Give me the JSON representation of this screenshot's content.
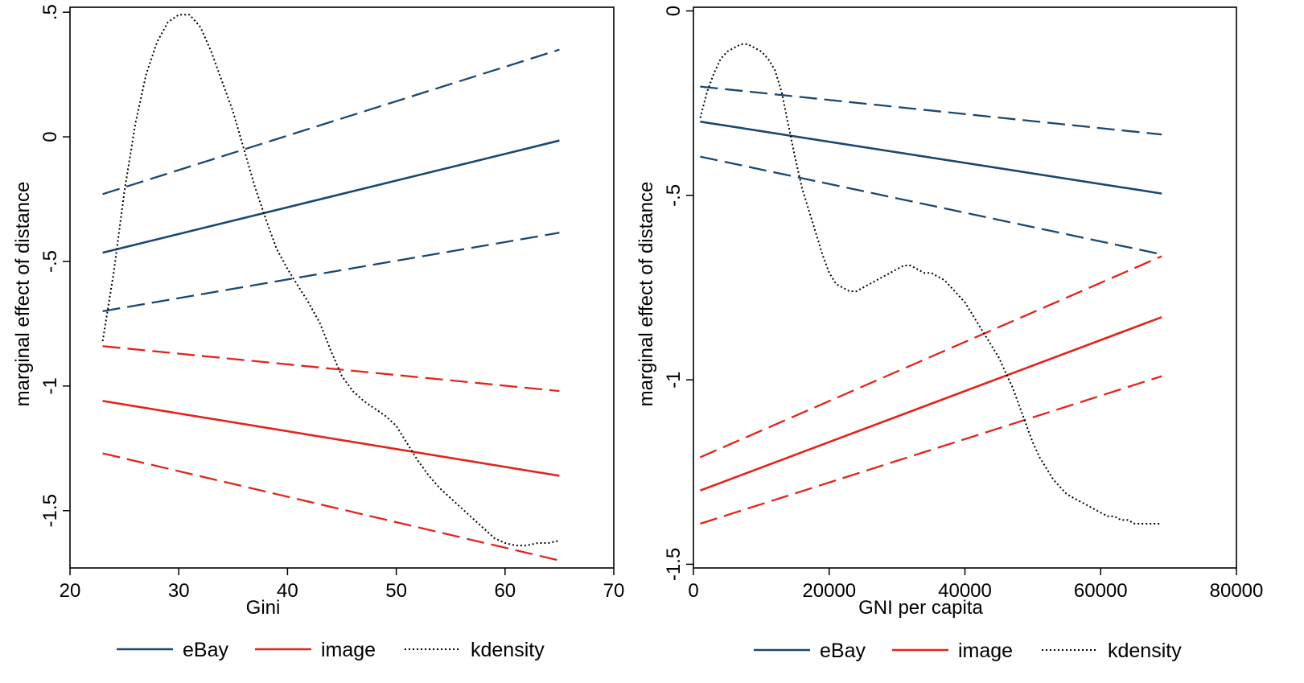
{
  "colors": {
    "ebay": "#1a476f",
    "image": "#e2231a",
    "kdensity": "#000000",
    "frame": "#000000"
  },
  "chart_data": [
    {
      "type": "line",
      "xlabel": "Gini",
      "ylabel": "marginal effect of distance",
      "xlim": [
        20,
        70
      ],
      "ylim": [
        -1.73,
        0.52
      ],
      "xticks": [
        {
          "value": 20,
          "label": "20"
        },
        {
          "value": 30,
          "label": "30"
        },
        {
          "value": 40,
          "label": "40"
        },
        {
          "value": 50,
          "label": "50"
        },
        {
          "value": 60,
          "label": "60"
        },
        {
          "value": 70,
          "label": "70"
        }
      ],
      "yticks": [
        {
          "value": 0.5,
          "label": ".5"
        },
        {
          "value": 0,
          "label": "0"
        },
        {
          "value": -0.5,
          "label": "-.5"
        },
        {
          "value": -1,
          "label": "-1"
        },
        {
          "value": -1.5,
          "label": "-1.5"
        }
      ],
      "legend_position": "bottom",
      "legend": [
        {
          "key": "ebay",
          "label": "eBay",
          "style": "solid"
        },
        {
          "key": "image",
          "label": "image",
          "style": "solid"
        },
        {
          "key": "kdensity",
          "label": "kdensity",
          "style": "dotted"
        }
      ],
      "series": [
        {
          "key": "ebay",
          "style": "solid",
          "x": [
            23,
            65
          ],
          "y": [
            -0.465,
            -0.015
          ]
        },
        {
          "key": "ebay",
          "style": "dashed",
          "x": [
            23,
            65
          ],
          "y": [
            -0.23,
            0.35
          ]
        },
        {
          "key": "ebay",
          "style": "dashed",
          "x": [
            23,
            65
          ],
          "y": [
            -0.7,
            -0.385
          ]
        },
        {
          "key": "image",
          "style": "solid",
          "x": [
            23,
            65
          ],
          "y": [
            -1.06,
            -1.36
          ]
        },
        {
          "key": "image",
          "style": "dashed",
          "x": [
            23,
            65
          ],
          "y": [
            -0.84,
            -1.02
          ]
        },
        {
          "key": "image",
          "style": "dashed",
          "x": [
            23,
            65
          ],
          "y": [
            -1.27,
            -1.7
          ]
        },
        {
          "key": "kdensity",
          "style": "dotted",
          "x": [
            23,
            24,
            25,
            26,
            27,
            28,
            29,
            30,
            31,
            32,
            33,
            34,
            35,
            36,
            37,
            38,
            39,
            40,
            41,
            42,
            43,
            44,
            45,
            46,
            47,
            48,
            49,
            50,
            51,
            52,
            53,
            54,
            55,
            56,
            57,
            58,
            59,
            60,
            61,
            62,
            63,
            64,
            65
          ],
          "y": [
            -0.82,
            -0.55,
            -0.22,
            0.05,
            0.25,
            0.38,
            0.46,
            0.49,
            0.49,
            0.44,
            0.34,
            0.22,
            0.1,
            -0.05,
            -0.2,
            -0.33,
            -0.45,
            -0.53,
            -0.6,
            -0.67,
            -0.75,
            -0.86,
            -0.96,
            -1.02,
            -1.06,
            -1.09,
            -1.12,
            -1.16,
            -1.23,
            -1.3,
            -1.36,
            -1.41,
            -1.45,
            -1.49,
            -1.53,
            -1.57,
            -1.61,
            -1.63,
            -1.64,
            -1.64,
            -1.63,
            -1.63,
            -1.62
          ]
        }
      ]
    },
    {
      "type": "line",
      "xlabel": "GNI per capita",
      "ylabel": "marginal effect of distance",
      "xlim": [
        0,
        80000
      ],
      "ylim": [
        -1.51,
        0.01
      ],
      "xticks": [
        {
          "value": 0,
          "label": "0"
        },
        {
          "value": 20000,
          "label": "20000"
        },
        {
          "value": 40000,
          "label": "40000"
        },
        {
          "value": 60000,
          "label": "60000"
        },
        {
          "value": 80000,
          "label": "80000"
        }
      ],
      "yticks": [
        {
          "value": 0,
          "label": "0"
        },
        {
          "value": -0.5,
          "label": "-.5"
        },
        {
          "value": -1,
          "label": "-1"
        },
        {
          "value": -1.5,
          "label": "-1.5"
        }
      ],
      "legend_position": "bottom",
      "legend": [
        {
          "key": "ebay",
          "label": "eBay",
          "style": "solid"
        },
        {
          "key": "image",
          "label": "image",
          "style": "solid"
        },
        {
          "key": "kdensity",
          "label": "kdensity",
          "style": "dotted"
        }
      ],
      "series": [
        {
          "key": "ebay",
          "style": "solid",
          "x": [
            1000,
            69000
          ],
          "y": [
            -0.3,
            -0.495
          ]
        },
        {
          "key": "ebay",
          "style": "dashed",
          "x": [
            1000,
            69000
          ],
          "y": [
            -0.205,
            -0.335
          ]
        },
        {
          "key": "ebay",
          "style": "dashed",
          "x": [
            1000,
            69000
          ],
          "y": [
            -0.395,
            -0.66
          ]
        },
        {
          "key": "image",
          "style": "solid",
          "x": [
            1000,
            69000
          ],
          "y": [
            -1.3,
            -0.83
          ]
        },
        {
          "key": "image",
          "style": "dashed",
          "x": [
            1000,
            69000
          ],
          "y": [
            -1.21,
            -0.665
          ]
        },
        {
          "key": "image",
          "style": "dashed",
          "x": [
            1000,
            69000
          ],
          "y": [
            -1.39,
            -0.99
          ]
        },
        {
          "key": "kdensity",
          "style": "dotted",
          "x": [
            1000,
            2000,
            3000,
            4000,
            5000,
            6000,
            7000,
            8000,
            9000,
            10000,
            11000,
            12000,
            13000,
            14000,
            15000,
            16000,
            17000,
            18000,
            19000,
            20000,
            21000,
            22000,
            23000,
            24000,
            25000,
            26000,
            27000,
            28000,
            29000,
            30000,
            31000,
            32000,
            33000,
            34000,
            35000,
            36000,
            37000,
            38000,
            39000,
            40000,
            41000,
            42000,
            43000,
            44000,
            45000,
            46000,
            47000,
            48000,
            49000,
            50000,
            51000,
            52000,
            53000,
            54000,
            55000,
            56000,
            57000,
            58000,
            59000,
            60000,
            61000,
            62000,
            63000,
            64000,
            65000,
            66000,
            67000,
            68000,
            69000
          ],
          "y": [
            -0.29,
            -0.22,
            -0.17,
            -0.13,
            -0.11,
            -0.1,
            -0.09,
            -0.09,
            -0.1,
            -0.11,
            -0.13,
            -0.16,
            -0.22,
            -0.31,
            -0.4,
            -0.48,
            -0.54,
            -0.6,
            -0.66,
            -0.71,
            -0.74,
            -0.75,
            -0.76,
            -0.76,
            -0.75,
            -0.74,
            -0.73,
            -0.72,
            -0.71,
            -0.7,
            -0.69,
            -0.69,
            -0.7,
            -0.71,
            -0.71,
            -0.72,
            -0.73,
            -0.75,
            -0.77,
            -0.79,
            -0.82,
            -0.85,
            -0.88,
            -0.91,
            -0.94,
            -0.98,
            -1.02,
            -1.07,
            -1.12,
            -1.17,
            -1.21,
            -1.24,
            -1.27,
            -1.29,
            -1.31,
            -1.32,
            -1.33,
            -1.34,
            -1.35,
            -1.36,
            -1.37,
            -1.37,
            -1.38,
            -1.38,
            -1.39,
            -1.39,
            -1.39,
            -1.39,
            -1.39
          ]
        }
      ]
    }
  ]
}
